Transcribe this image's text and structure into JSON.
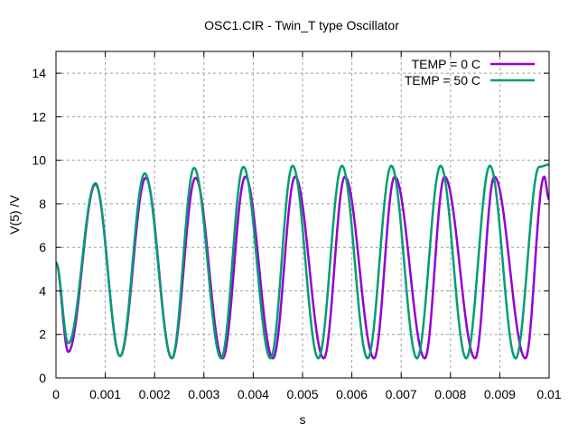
{
  "chart_data": {
    "type": "line",
    "title": "OSC1.CIR - Twin_T type Oscillator",
    "xlabel": "s",
    "ylabel": "V(5) /V",
    "xlim": [
      0,
      0.01
    ],
    "ylim": [
      0,
      15
    ],
    "xticks": [
      0,
      0.001,
      0.002,
      0.003,
      0.004,
      0.005,
      0.006,
      0.007,
      0.008,
      0.009,
      0.01
    ],
    "xtick_labels": [
      "0",
      "0.001",
      "0.002",
      "0.003",
      "0.004",
      "0.005",
      "0.006",
      "0.007",
      "0.008",
      "0.009",
      "0.01"
    ],
    "yticks": [
      0,
      2,
      4,
      6,
      8,
      10,
      12,
      14
    ],
    "ytick_labels": [
      "0",
      "2",
      "4",
      "6",
      "8",
      "10",
      "12",
      "14"
    ],
    "grid": true,
    "legend_position": "top-right",
    "series": [
      {
        "name": "TEMP = 0 C",
        "color": "#9400d3",
        "x": [
          0,
          0.00025,
          0.0008,
          0.0013,
          0.00182,
          0.00235,
          0.00283,
          0.00338,
          0.00384,
          0.0044,
          0.00485,
          0.00543,
          0.00586,
          0.00645,
          0.00687,
          0.00748,
          0.00788,
          0.0085,
          0.00889,
          0.00952,
          0.0099,
          0.01
        ],
        "y": [
          5.3,
          1.2,
          8.9,
          1.0,
          9.2,
          0.9,
          9.2,
          0.9,
          9.25,
          0.9,
          9.25,
          0.9,
          9.25,
          0.9,
          9.25,
          0.9,
          9.25,
          0.9,
          9.25,
          0.9,
          9.25,
          8.2
        ]
      },
      {
        "name": "TEMP = 50 C",
        "color": "#009e73",
        "x": [
          0,
          0.00025,
          0.0008,
          0.0013,
          0.0018,
          0.00235,
          0.0028,
          0.00335,
          0.0038,
          0.00435,
          0.0048,
          0.00532,
          0.0058,
          0.00632,
          0.0068,
          0.00732,
          0.0078,
          0.00832,
          0.0088,
          0.00932,
          0.0098,
          0.01
        ],
        "y": [
          5.3,
          1.6,
          8.95,
          1.0,
          9.4,
          0.9,
          9.65,
          0.9,
          9.7,
          0.9,
          9.75,
          0.9,
          9.75,
          0.9,
          9.75,
          0.9,
          9.75,
          0.9,
          9.75,
          0.9,
          9.7,
          9.8
        ]
      }
    ]
  }
}
